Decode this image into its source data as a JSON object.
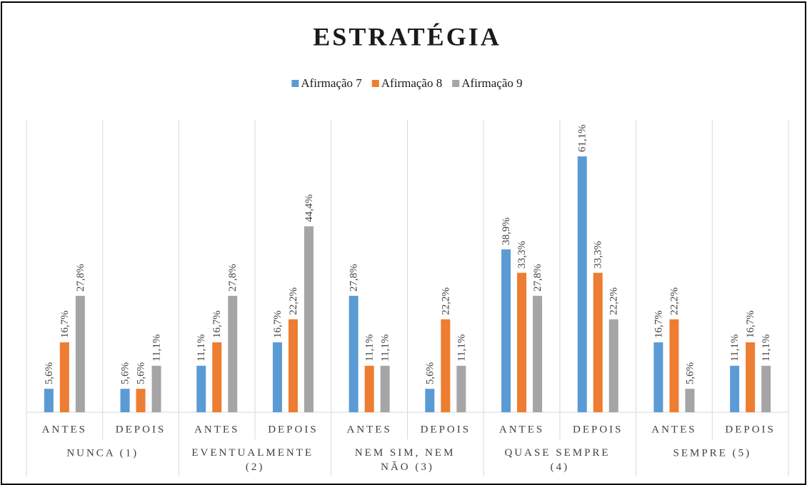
{
  "chart_data": {
    "type": "bar",
    "title": "ESTRATÉGIA",
    "categories": [
      "ANTES",
      "DEPOIS",
      "ANTES",
      "DEPOIS",
      "ANTES",
      "DEPOIS",
      "ANTES",
      "DEPOIS",
      "ANTES",
      "DEPOIS"
    ],
    "groups": [
      "NUNCA (1)",
      "EVENTUALMENTE (2)",
      "NEM SIM, NEM NÃO (3)",
      "QUASE SEMPRE (4)",
      "SEMPRE (5)"
    ],
    "series": [
      {
        "name": "Afirmação 7",
        "color": "#5b9bd5",
        "values": [
          5.6,
          5.6,
          11.1,
          16.7,
          27.8,
          5.6,
          38.9,
          61.1,
          16.7,
          11.1
        ],
        "value_labels": [
          "5,6%",
          "5,6%",
          "11,1%",
          "16,7%",
          "27,8%",
          "5,6%",
          "38,9%",
          "61,1%",
          "16,7%",
          "11,1%"
        ]
      },
      {
        "name": "Afirmação 8",
        "color": "#ed7d31",
        "values": [
          16.7,
          5.6,
          16.7,
          22.2,
          11.1,
          22.2,
          33.3,
          33.3,
          22.2,
          16.7
        ],
        "value_labels": [
          "16,7%",
          "5,6%",
          "16,7%",
          "22,2%",
          "11,1%",
          "22,2%",
          "33,3%",
          "33,3%",
          "22,2%",
          "16,7%"
        ]
      },
      {
        "name": "Afirmação 9",
        "color": "#a5a5a5",
        "values": [
          27.8,
          11.1,
          27.8,
          44.4,
          11.1,
          11.1,
          27.8,
          22.2,
          5.6,
          11.1
        ],
        "value_labels": [
          "27,8%",
          "11,1%",
          "27,8%",
          "44,4%",
          "11,1%",
          "11,1%",
          "27,8%",
          "22,2%",
          "5,6%",
          "11,1%"
        ]
      }
    ],
    "ylim": [
      0,
      70
    ],
    "legend": "top"
  }
}
